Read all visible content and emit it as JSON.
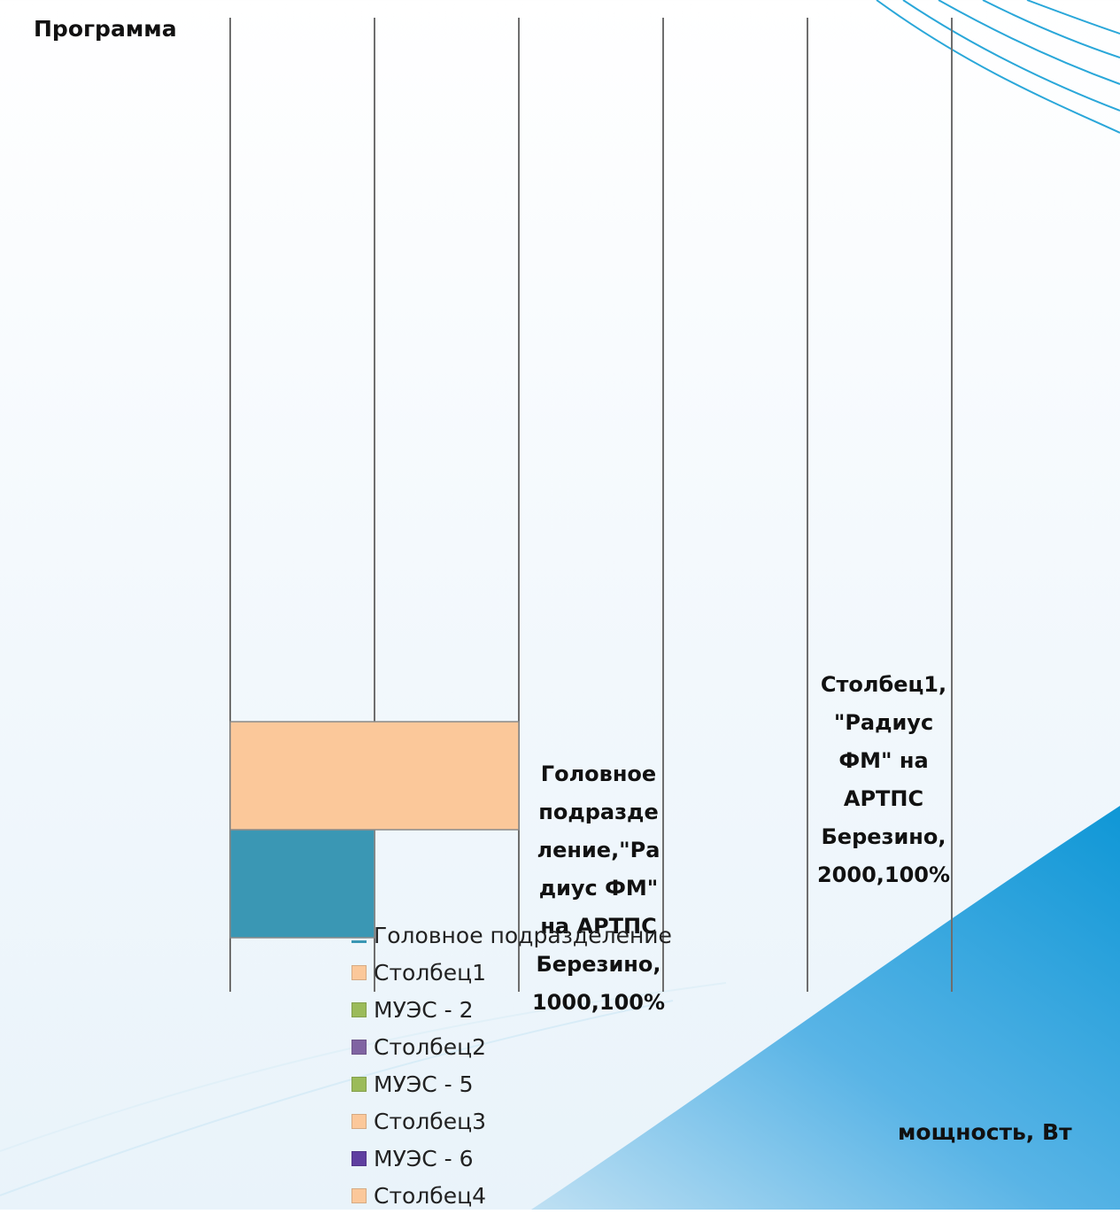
{
  "chart_data": {
    "type": "bar",
    "orientation": "horizontal",
    "stacked": "percent",
    "ylabel": "Программа",
    "xlabel": "мощность, Вт",
    "categories": [
      "Радиус ФМ\" на АРТПС Березино"
    ],
    "series": [
      {
        "name": "Головное подразделение",
        "values": [
          1000
        ],
        "percent": [
          100
        ],
        "color": "#3a97b4"
      },
      {
        "name": "Столбец1",
        "values": [
          2000
        ],
        "percent": [
          100
        ],
        "color": "#fbc89a"
      }
    ],
    "data_labels": [
      "Головное\nподразде\nление,\"Ра\nдиус ФМ\"\nна АРТПС\nБерезино,\n1000,100%",
      "Столбец1,\n\"Радиус\nФМ\" на\nАРТПС\nБерезино,\n2000,100%"
    ],
    "legend": {
      "placement": "bottom-left",
      "items": [
        {
          "name": "Головное подразделение",
          "color": "#3a97b4"
        },
        {
          "name": "Столбец1",
          "color": "#fbc89a"
        },
        {
          "name": "МУЭС - 2",
          "color": "#9bbb59"
        },
        {
          "name": "Столбец2",
          "color": "#8064a2"
        },
        {
          "name": "МУЭС - 5",
          "color": "#9bbb59"
        },
        {
          "name": "Столбец3",
          "color": "#fbc89a"
        },
        {
          "name": "МУЭС - 6",
          "color": "#5f3fa0"
        },
        {
          "name": "Столбец4",
          "color": "#fbc89a"
        }
      ]
    },
    "gridlines": {
      "vertical": true,
      "count": 6
    },
    "grid": true
  }
}
